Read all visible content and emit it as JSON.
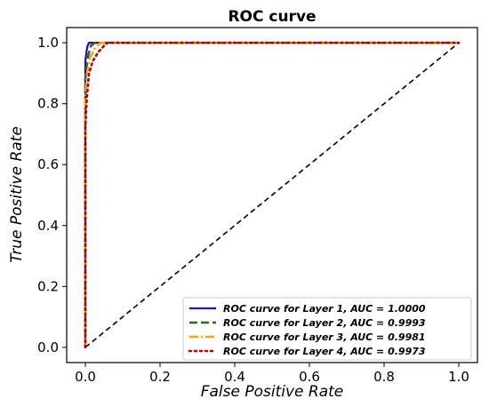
{
  "chart_data": {
    "type": "line",
    "title": "ROC curve",
    "xlabel": "False Positive Rate",
    "ylabel": "True Positive Rate",
    "xlim": [
      -0.05,
      1.05
    ],
    "ylim": [
      -0.05,
      1.05
    ],
    "xticks": [
      0.0,
      0.2,
      0.4,
      0.6,
      0.8,
      1.0
    ],
    "yticks": [
      0.0,
      0.2,
      0.4,
      0.6,
      0.8,
      1.0
    ],
    "xtick_labels": [
      "0.0",
      "0.2",
      "0.4",
      "0.6",
      "0.8",
      "1.0"
    ],
    "ytick_labels": [
      "0.0",
      "0.2",
      "0.4",
      "0.6",
      "0.8",
      "1.0"
    ],
    "grid": false,
    "legend_position": "bottom-right",
    "series": [
      {
        "name": "ROC curve for Layer 1, AUC = 1.0000",
        "color": "#2a00d4",
        "style": "solid",
        "points": [
          [
            0,
            0
          ],
          [
            0,
            0.94
          ],
          [
            0.003,
            0.97
          ],
          [
            0.006,
            0.99
          ],
          [
            0.01,
            1.0
          ],
          [
            1.0,
            1.0
          ]
        ]
      },
      {
        "name": "ROC curve for Layer 2, AUC = 0.9993",
        "color": "#1f6b2e",
        "style": "dashed",
        "points": [
          [
            0,
            0
          ],
          [
            0,
            0.88
          ],
          [
            0.004,
            0.93
          ],
          [
            0.008,
            0.96
          ],
          [
            0.015,
            0.99
          ],
          [
            0.025,
            1.0
          ],
          [
            1.0,
            1.0
          ]
        ]
      },
      {
        "name": "ROC curve for Layer 3, AUC = 0.9981",
        "color": "#ffa500",
        "style": "dashdot",
        "points": [
          [
            0,
            0
          ],
          [
            0,
            0.82
          ],
          [
            0.005,
            0.9
          ],
          [
            0.012,
            0.95
          ],
          [
            0.025,
            0.98
          ],
          [
            0.04,
            1.0
          ],
          [
            1.0,
            1.0
          ]
        ]
      },
      {
        "name": "ROC curve for Layer 4, AUC = 0.9973",
        "color": "#b00000",
        "style": "dotted",
        "points": [
          [
            0,
            0
          ],
          [
            0,
            0.72
          ],
          [
            0.004,
            0.82
          ],
          [
            0.01,
            0.9
          ],
          [
            0.02,
            0.94
          ],
          [
            0.035,
            0.97
          ],
          [
            0.05,
            0.99
          ],
          [
            0.06,
            1.0
          ],
          [
            1.0,
            1.0
          ]
        ]
      },
      {
        "name": "",
        "color": "#000000",
        "style": "diagonal",
        "points": [
          [
            0,
            0
          ],
          [
            1,
            1
          ]
        ]
      }
    ]
  }
}
